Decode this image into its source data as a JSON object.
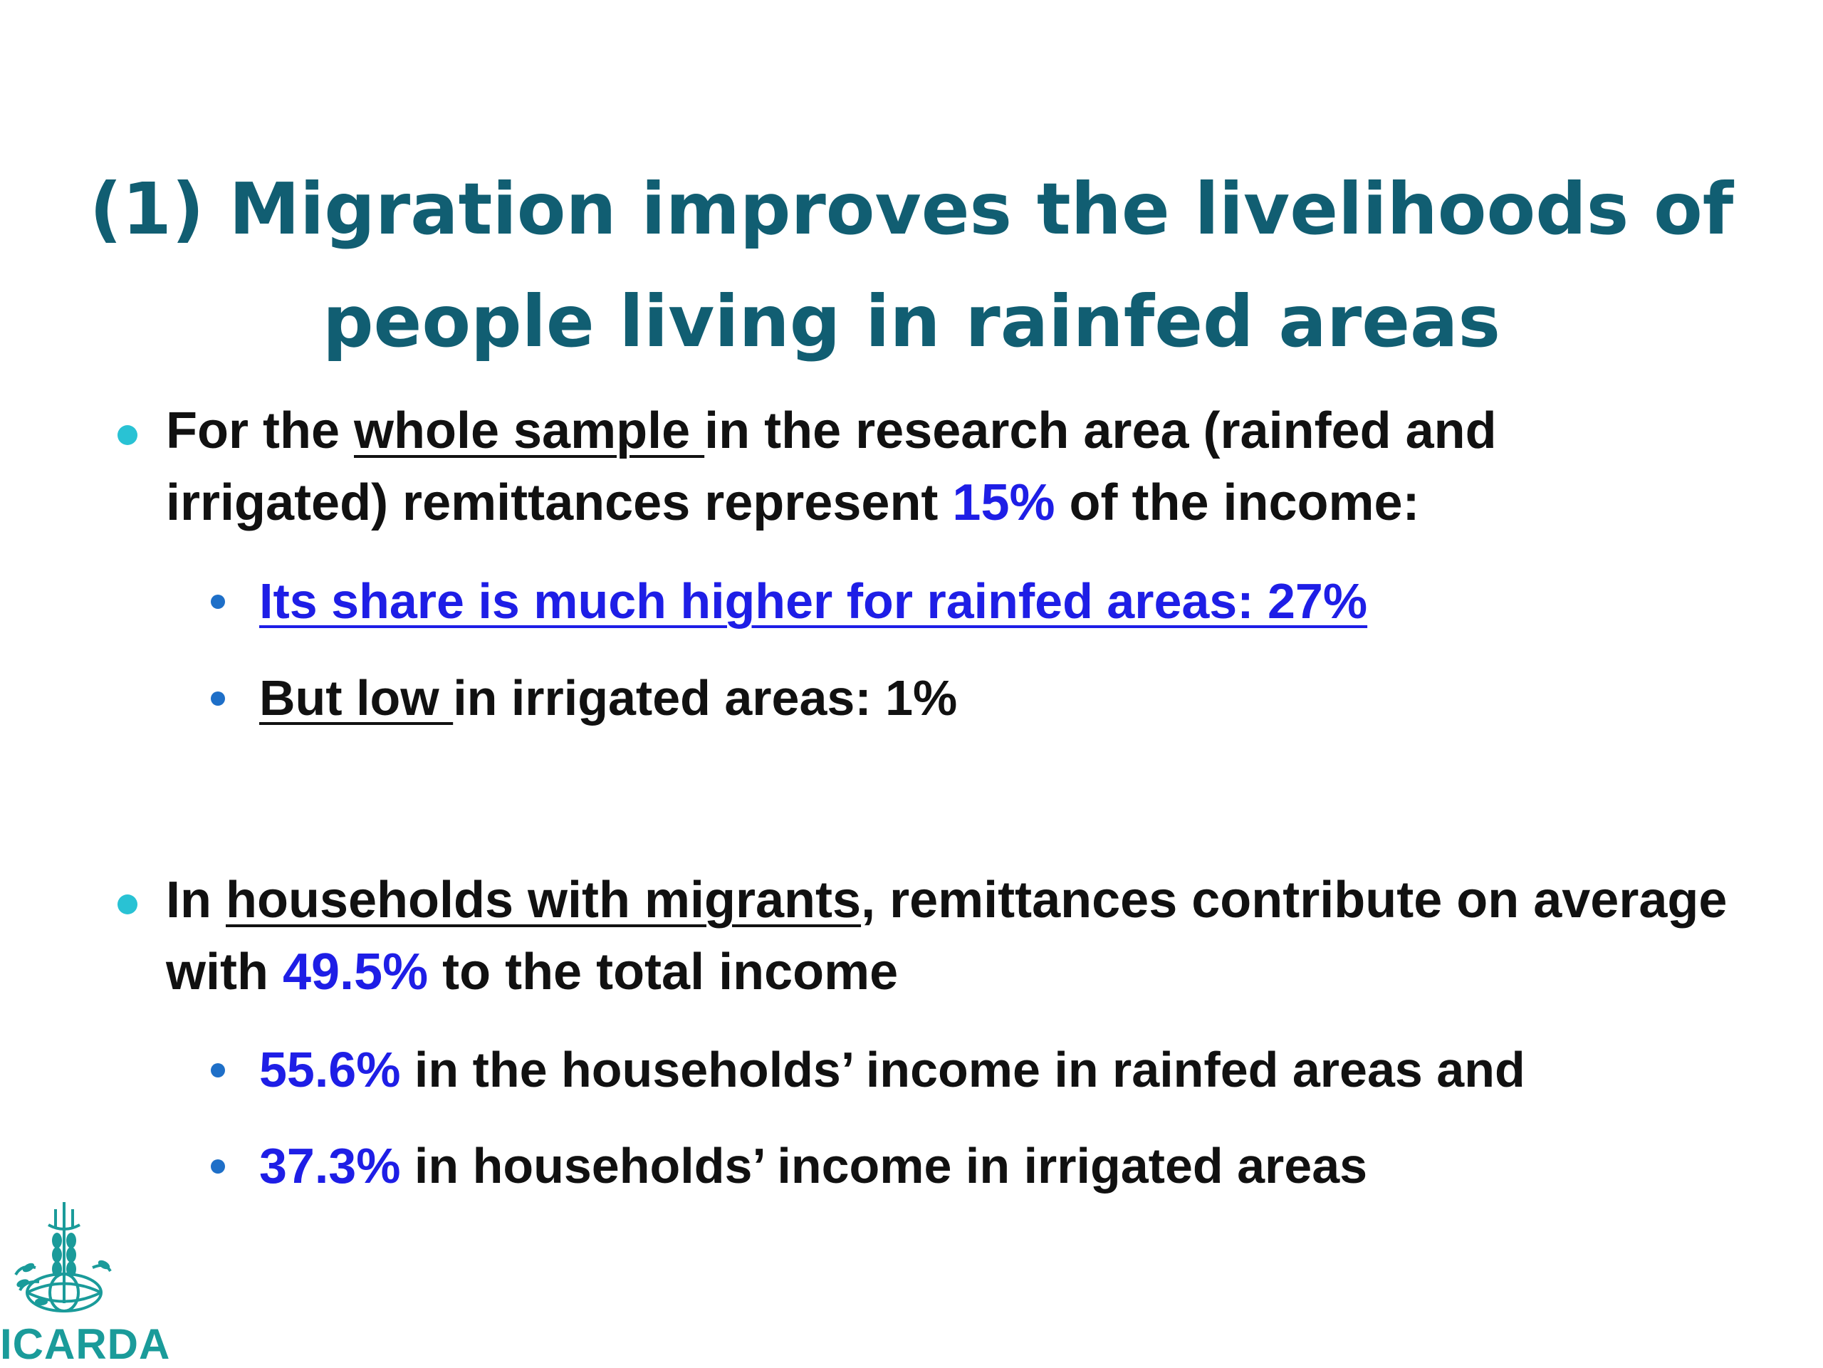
{
  "title": {
    "line1": "(1) Migration improves the livelihoods of",
    "line2": "people living in rainfed areas"
  },
  "bullets": [
    {
      "p1": "For the ",
      "u1": "whole sample ",
      "p2": "in the research area (rainfed and irrigated) remittances represent ",
      "value": "15%",
      "p3": " of the income:",
      "subs": [
        {
          "text": "Its share is much higher for rainfed areas: 27%"
        },
        {
          "u1": "But low ",
          "p1": "in irrigated areas: 1%"
        }
      ]
    },
    {
      "p1": "In ",
      "u1": "households with migrants",
      "p2": ", remittances contribute on average with ",
      "value": "49.5%",
      "p3": " to the total income",
      "subs": [
        {
          "value": "55.6%",
          "p1": " in the households’ income in rainfed areas and"
        },
        {
          "value": "37.3%",
          "p1": " in households’ income in irrigated areas"
        }
      ]
    }
  ],
  "logo": {
    "text": "ICARDA"
  },
  "colors": {
    "title": "#115e72",
    "highlight": "#1e1ee6",
    "bullet_main": "#29c2d4",
    "bullet_sub": "#1e6fc8",
    "logo": "#1a9b9a"
  }
}
